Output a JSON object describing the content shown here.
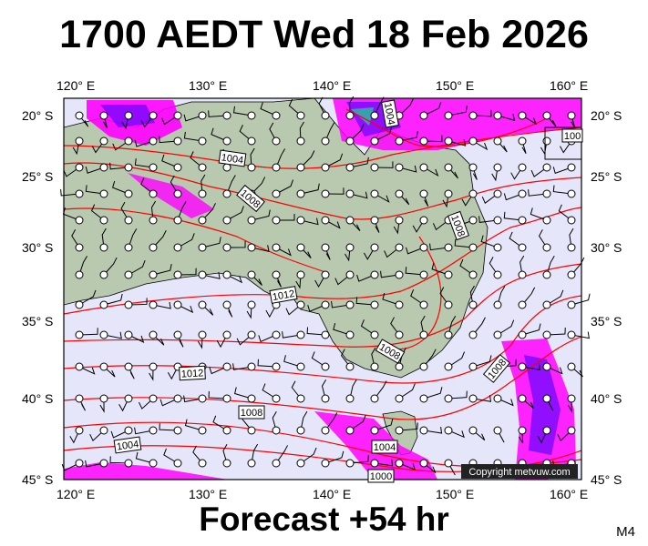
{
  "title": "1700 AEDT Wed 18 Feb 2026",
  "footer": {
    "forecast": "Forecast +54 hr",
    "model": "M4"
  },
  "copyright": "Copyright metvuw.com",
  "axes": {
    "lon_labels": [
      "120° E",
      "130° E",
      "140° E",
      "150° E",
      "160° E"
    ],
    "lat_labels": [
      "20° S",
      "25° S",
      "30° S",
      "35° S",
      "40° S",
      "45° S"
    ]
  },
  "isobar_labels": [
    "1004",
    "100",
    "1004",
    "1008",
    "1008",
    "1012",
    "1008",
    "1008",
    "1012",
    "1008",
    "1004",
    "1004",
    "1000"
  ],
  "colors": {
    "sea": "#e6e6fa",
    "land": "#b9c9b0",
    "isobar": "#ff0000",
    "rain": "#ff00ff",
    "heavy_rain": "#4b00ff"
  }
}
